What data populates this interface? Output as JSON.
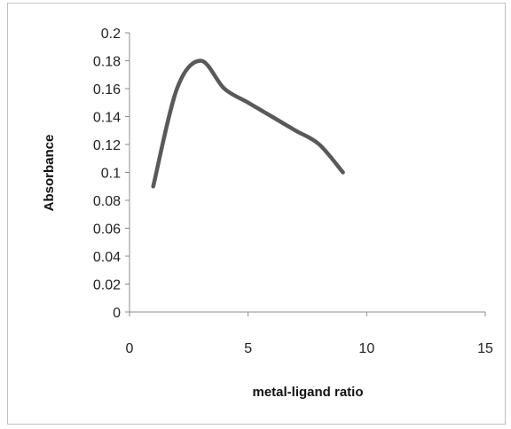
{
  "chart_data": {
    "type": "line",
    "title": "",
    "xlabel": "metal-ligand ratio",
    "ylabel": "Absorbance",
    "xlim": [
      0,
      15
    ],
    "ylim": [
      0,
      0.2
    ],
    "x_ticks": [
      "0",
      "5",
      "10",
      "15"
    ],
    "y_ticks": [
      "0",
      "0.02",
      "0.04",
      "0.06",
      "0.08",
      "0.1",
      "0.12",
      "0.14",
      "0.16",
      "0.18",
      "0.2"
    ],
    "grid": false,
    "legend": "none",
    "series": [
      {
        "x": [
          1,
          2,
          3,
          4,
          5,
          6,
          7,
          8,
          9
        ],
        "y": [
          0.09,
          0.16,
          0.18,
          0.16,
          0.15,
          0.14,
          0.13,
          0.12,
          0.1
        ],
        "color": "#595959"
      }
    ]
  }
}
